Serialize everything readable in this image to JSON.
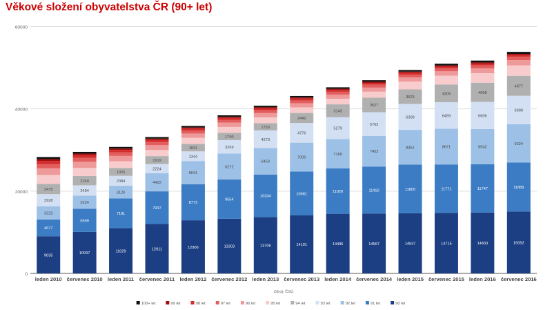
{
  "chart_data": {
    "type": "bar",
    "stacked": true,
    "title": "Věkové složení obyvatelstva ČR (90+ let)",
    "source_label": "Zdroj: ČSÚ",
    "ylim": [
      0,
      60000
    ],
    "yticks": [
      0,
      20000,
      40000,
      60000
    ],
    "grid": true,
    "legend_position": "bottom",
    "categories": [
      "leden 2010",
      "červenec 2010",
      "leden 2011",
      "červenec 2011",
      "leden 2012",
      "červenec 2012",
      "leden 2013",
      "červenec 2013",
      "leden 2014",
      "červenec 2014",
      "leden 2015",
      "červenec 2015",
      "leden 2016",
      "červenec 2016"
    ],
    "series": [
      {
        "name": "90 let",
        "color": "#1b3f82",
        "labeled": true,
        "values": [
          9035,
          10097,
          11029,
          12011,
          12906,
          13303,
          13706,
          14101,
          14496,
          14567,
          14637,
          14715,
          14803,
          15052
        ]
      },
      {
        "name": "91 let",
        "color": "#3b7cc4",
        "labeled": true,
        "values": [
          4077,
          5599,
          7191,
          7937,
          8773,
          9554,
          10334,
          10681,
          11020,
          11410,
          11805,
          11771,
          11747,
          11889
        ]
      },
      {
        "name": "92 let",
        "color": "#9dc0e6",
        "labeled": true,
        "values": [
          3222,
          3224,
          3120,
          4422,
          5641,
          6272,
          6450,
          7000,
          7166,
          7452,
          8451,
          8671,
          8542,
          9324
        ]
      },
      {
        "name": "93 let",
        "color": "#d3e0f4",
        "labeled": true,
        "values": [
          2928,
          2494,
          2384,
          2224,
          2344,
          3269,
          4273,
          4776,
          5279,
          5763,
          6308,
          6459,
          6606,
          6909
        ]
      },
      {
        "name": "94 let",
        "color": "#b0b0b0",
        "labeled": true,
        "values": [
          2475,
          2260,
          1926,
          1919,
          1831,
          1790,
          1753,
          2442,
          3143,
          3527,
          3525,
          4309,
          4669,
          4877
        ]
      },
      {
        "name": "95 let",
        "color": "#f8cccc",
        "labeled": false,
        "values": [
          2200,
          1950,
          1600,
          1500,
          1450,
          1400,
          1400,
          1350,
          1350,
          1450,
          1900,
          2150,
          2300,
          2500
        ]
      },
      {
        "name": "96 let",
        "color": "#ef9a9a",
        "labeled": false,
        "values": [
          1600,
          1500,
          1300,
          1150,
          1050,
          1050,
          1050,
          1000,
          1000,
          1000,
          1000,
          1050,
          1150,
          1300
        ]
      },
      {
        "name": "97 let",
        "color": "#e35f5f",
        "labeled": false,
        "values": [
          1050,
          950,
          900,
          800,
          750,
          700,
          700,
          700,
          700,
          700,
          700,
          700,
          750,
          800
        ]
      },
      {
        "name": "98 let",
        "color": "#d22c2c",
        "labeled": false,
        "values": [
          750,
          650,
          550,
          500,
          450,
          450,
          450,
          450,
          450,
          450,
          450,
          450,
          450,
          450
        ]
      },
      {
        "name": "99 let",
        "color": "#a30f0f",
        "labeled": false,
        "values": [
          450,
          400,
          350,
          300,
          280,
          270,
          270,
          270,
          270,
          270,
          270,
          270,
          270,
          270
        ]
      },
      {
        "name": "100+ let",
        "color": "#111111",
        "labeled": false,
        "values": [
          500,
          420,
          400,
          380,
          370,
          370,
          370,
          370,
          370,
          380,
          400,
          420,
          450,
          480
        ]
      }
    ]
  }
}
